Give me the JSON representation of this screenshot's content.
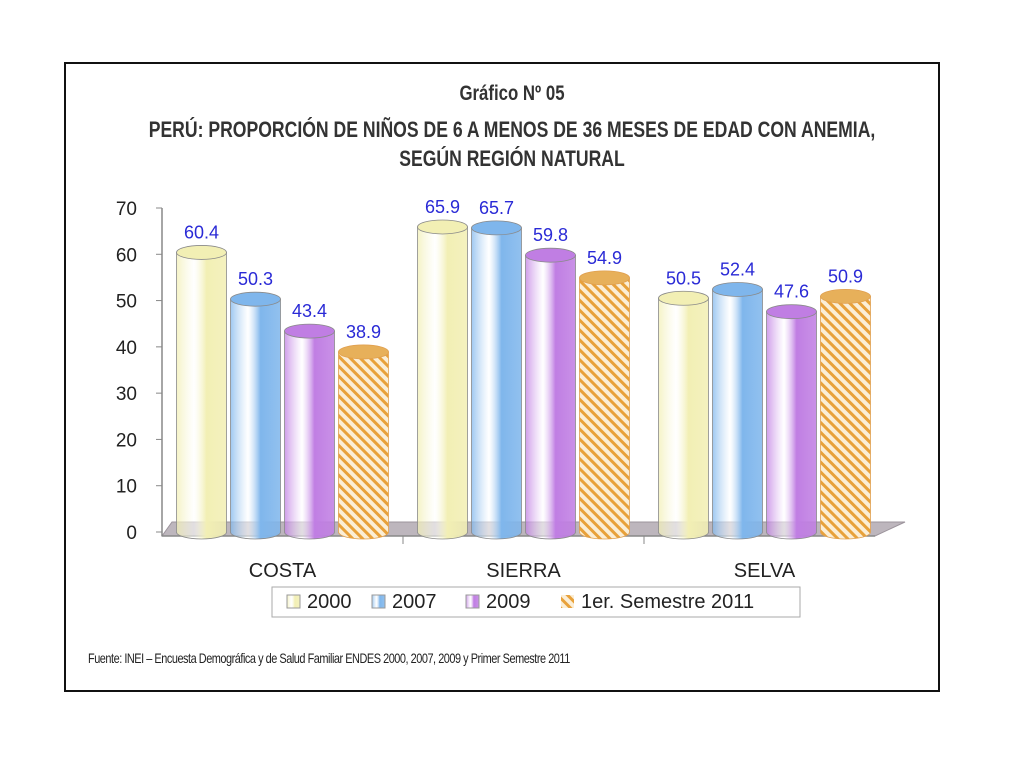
{
  "chart_data": {
    "type": "bar",
    "title_line1": "Gráfico Nº 05",
    "title_line2": "PERÚ: PROPORCIÓN DE NIÑOS DE 6 A MENOS DE 36 MESES DE EDAD CON ANEMIA,",
    "title_line3": "SEGÚN REGIÓN NATURAL",
    "categories": [
      "COSTA",
      "SIERRA",
      "SELVA"
    ],
    "series": [
      {
        "name": "2000",
        "values": [
          60.4,
          65.9,
          50.5
        ],
        "color": "#f2efb4"
      },
      {
        "name": "2007",
        "values": [
          50.3,
          65.7,
          52.4
        ],
        "color": "#7fb6ec"
      },
      {
        "name": "2009",
        "values": [
          43.4,
          59.8,
          47.6
        ],
        "color": "#c07ee3"
      },
      {
        "name": "1er. Semestre 2011",
        "values": [
          38.9,
          54.9,
          50.9
        ],
        "color": "#e8a13a",
        "pattern": "hatched"
      }
    ],
    "ylim": [
      0,
      70
    ],
    "yticks": [
      0,
      10,
      20,
      30,
      40,
      50,
      60,
      70
    ],
    "legend_position": "bottom",
    "label_color": "#2a2ad6",
    "source": "Fuente: INEI – Encuesta Demográfica y de Salud Familiar ENDES 2000, 2007, 2009 y Primer Semestre 2011"
  }
}
